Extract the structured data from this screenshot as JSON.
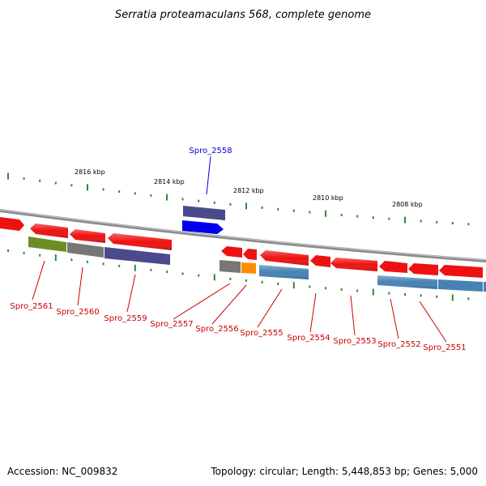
{
  "title": "Serratia proteamaculans 568, complete genome",
  "footer": {
    "accession": "Accession: NC_009832",
    "summary": "Topology: circular; Length: 5,448,853 bp; Genes: 5,000"
  },
  "scale_labels": [
    "2816 kbp",
    "2814 kbp",
    "2812 kbp",
    "2810 kbp",
    "2808 kbp"
  ],
  "colors": {
    "backbone": "#8a8a8a",
    "tick": "#2e8b2e",
    "gene_label": "#cc0000",
    "highlight_label": "#0000cc",
    "leader_line": "#cc0000",
    "highlight_leader": "#0000cc",
    "red_gene": "#ee1111",
    "olive_gene": "#6b8e23",
    "gray_gene": "#777777",
    "purple_gene": "#4b4a8c",
    "blue_gene": "#0000ee",
    "orange_gene": "#ff8c00",
    "steel_gene": "#4682b4"
  },
  "highlight_gene": "Spro_2558",
  "gene_labels": [
    "Spro_2561",
    "Spro_2560",
    "Spro_2559",
    "Spro_2557",
    "Spro_2556",
    "Spro_2555",
    "Spro_2554",
    "Spro_2553",
    "Spro_2552",
    "Spro_2551"
  ]
}
